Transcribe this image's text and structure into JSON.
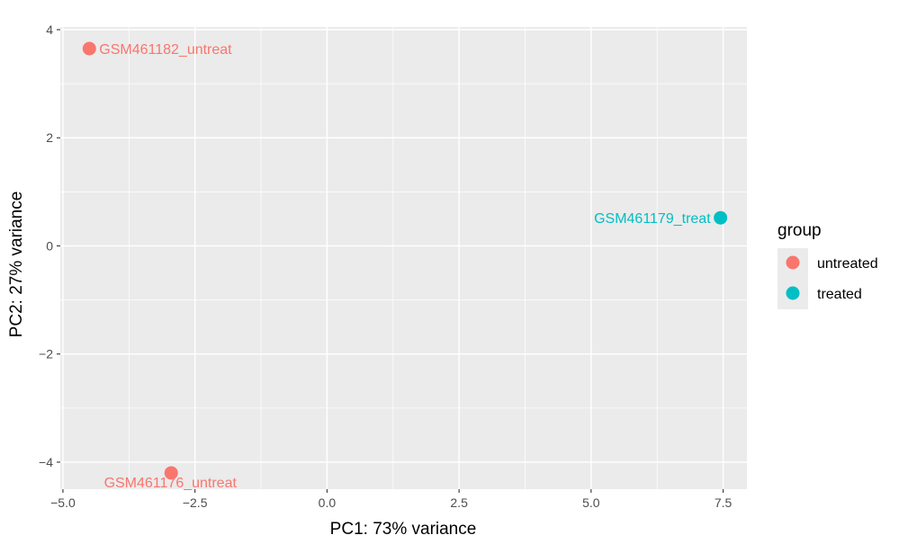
{
  "chart_data": {
    "type": "scatter",
    "xlabel": "PC1: 73% variance",
    "ylabel": "PC2: 27% variance",
    "xlim": [
      -5.05,
      7.95
    ],
    "ylim": [
      -4.5,
      4.05
    ],
    "x_ticks": [
      -5,
      -2.5,
      0,
      2.5,
      5,
      7.5
    ],
    "x_tick_labels": [
      "−5.0",
      "−2.5",
      "0.0",
      "2.5",
      "5.0",
      "7.5"
    ],
    "y_ticks": [
      -4,
      -2,
      0,
      2,
      4
    ],
    "y_tick_labels": [
      "−4",
      "−2",
      "0",
      "2",
      "4"
    ],
    "grid": true,
    "legend": {
      "title": "group",
      "position": "right",
      "items": [
        {
          "label": "untreated",
          "color": "#F8766D"
        },
        {
          "label": "treated",
          "color": "#00BFC4"
        }
      ]
    },
    "series": [
      {
        "name": "untreated",
        "color": "#F8766D",
        "points": [
          {
            "x": -4.5,
            "y": 3.65,
            "label": "GSM461182_untreat",
            "label_side": "right"
          },
          {
            "x": -2.95,
            "y": -4.2,
            "label": "GSM461176_untreat",
            "label_side": "below"
          }
        ]
      },
      {
        "name": "treated",
        "color": "#00BFC4",
        "points": [
          {
            "x": 7.45,
            "y": 0.52,
            "label": "GSM461179_treat",
            "label_side": "left"
          }
        ]
      }
    ]
  }
}
